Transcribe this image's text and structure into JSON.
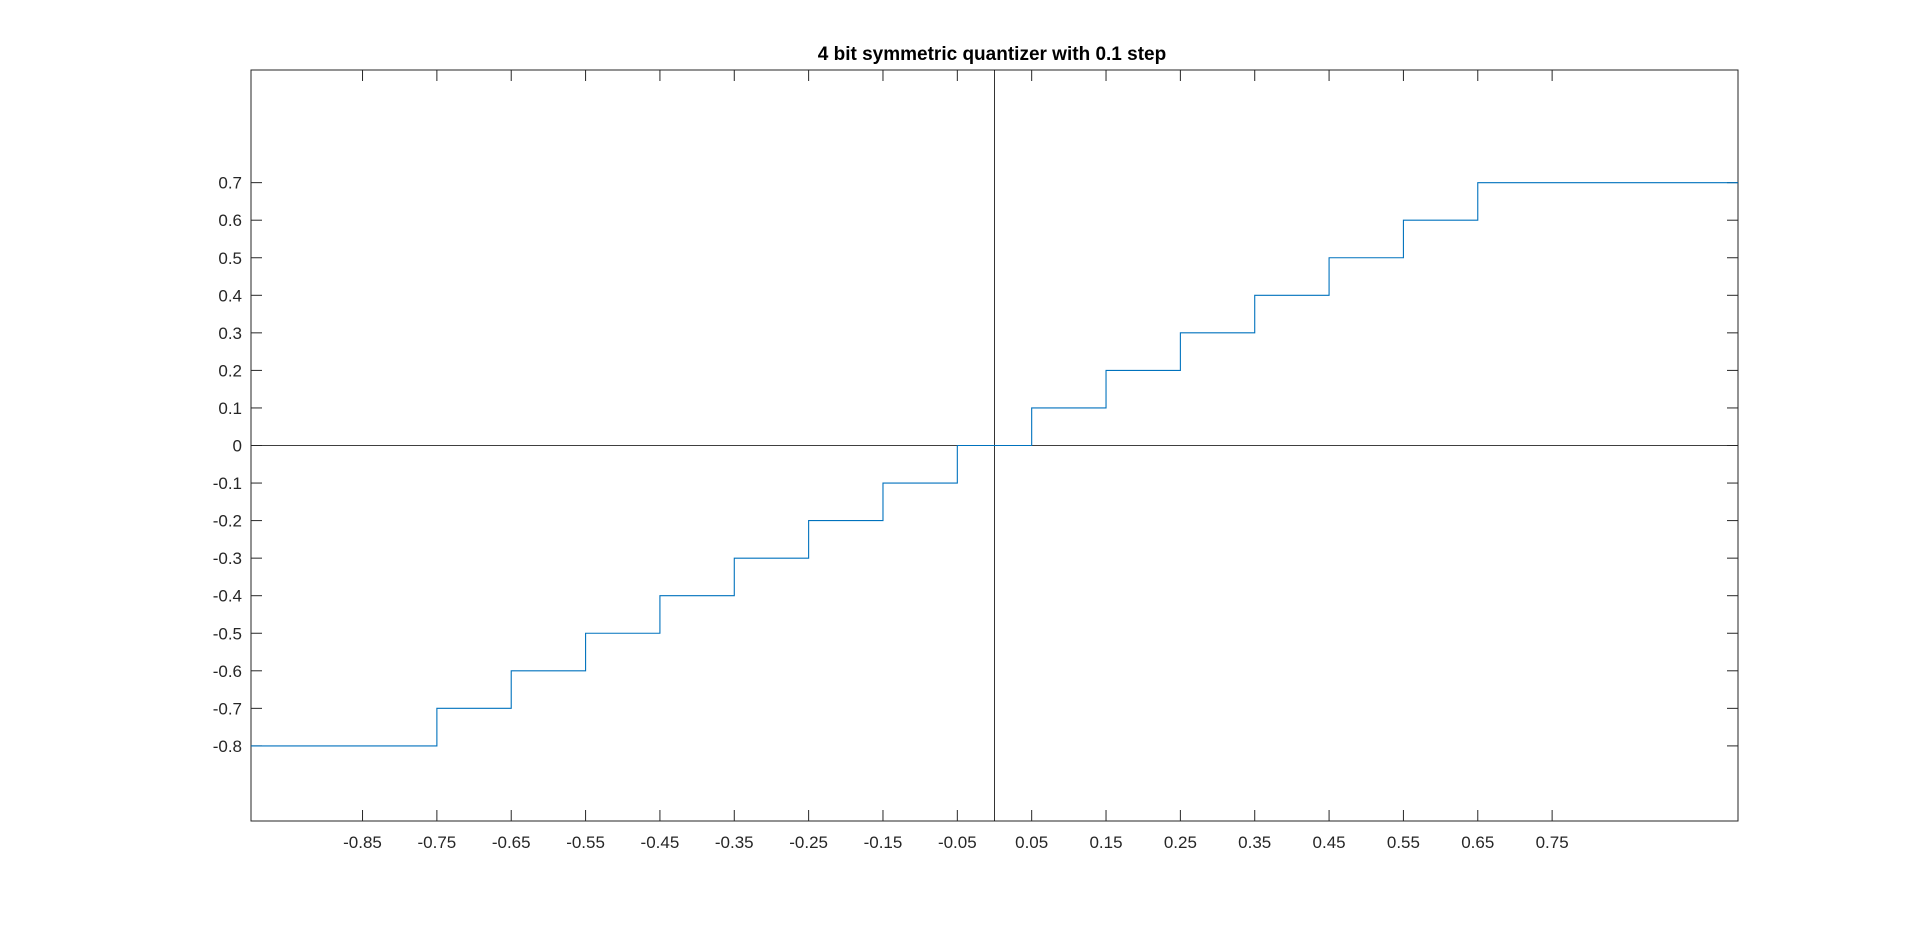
{
  "chart_data": {
    "type": "line",
    "title": "4 bit symmetric quantizer with 0.1 step",
    "xlabel": "",
    "ylabel": "",
    "xlim": [
      -1,
      1
    ],
    "ylim": [
      -1,
      1
    ],
    "grid": false,
    "xticks": [
      -0.85,
      -0.75,
      -0.65,
      -0.55,
      -0.45,
      -0.35,
      -0.25,
      -0.15,
      -0.05,
      0.05,
      0.15,
      0.25,
      0.35,
      0.45,
      0.55,
      0.65,
      0.75
    ],
    "xtick_labels": [
      "-0.85",
      "-0.75",
      "-0.65",
      "-0.55",
      "-0.45",
      "-0.35",
      "-0.25",
      "-0.15",
      "-0.05",
      "0.05",
      "0.15",
      "0.25",
      "0.35",
      "0.45",
      "0.55",
      "0.65",
      "0.75"
    ],
    "yticks": [
      0.7,
      0.6,
      0.5,
      0.4,
      0.3,
      0.2,
      0.1,
      0,
      -0.1,
      -0.2,
      -0.3,
      -0.4,
      -0.5,
      -0.6,
      -0.7,
      -0.8
    ],
    "ytick_labels": [
      "0.7",
      "0.6",
      "0.5",
      "0.4",
      "0.3",
      "0.2",
      "0.1",
      "0",
      "-0.1",
      "-0.2",
      "-0.3",
      "-0.4",
      "-0.5",
      "-0.6",
      "-0.7",
      "-0.8"
    ],
    "reference_lines": {
      "x": 0,
      "y": 0,
      "color": "#000000"
    },
    "series": [
      {
        "color": "#0072bd",
        "x": [
          -1,
          -0.75,
          -0.75,
          -0.65,
          -0.65,
          -0.55,
          -0.55,
          -0.45,
          -0.45,
          -0.35,
          -0.35,
          -0.25,
          -0.25,
          -0.15,
          -0.15,
          -0.05,
          -0.05,
          0.05,
          0.05,
          0.15,
          0.15,
          0.25,
          0.25,
          0.35,
          0.35,
          0.45,
          0.45,
          0.55,
          0.55,
          0.65,
          0.65,
          1
        ],
        "y": [
          -0.8,
          -0.8,
          -0.7,
          -0.7,
          -0.6,
          -0.6,
          -0.5,
          -0.5,
          -0.4,
          -0.4,
          -0.3,
          -0.3,
          -0.2,
          -0.2,
          -0.1,
          -0.1,
          0,
          0,
          0.1,
          0.1,
          0.2,
          0.2,
          0.3,
          0.3,
          0.4,
          0.4,
          0.5,
          0.5,
          0.6,
          0.6,
          0.7,
          0.7
        ]
      }
    ]
  }
}
